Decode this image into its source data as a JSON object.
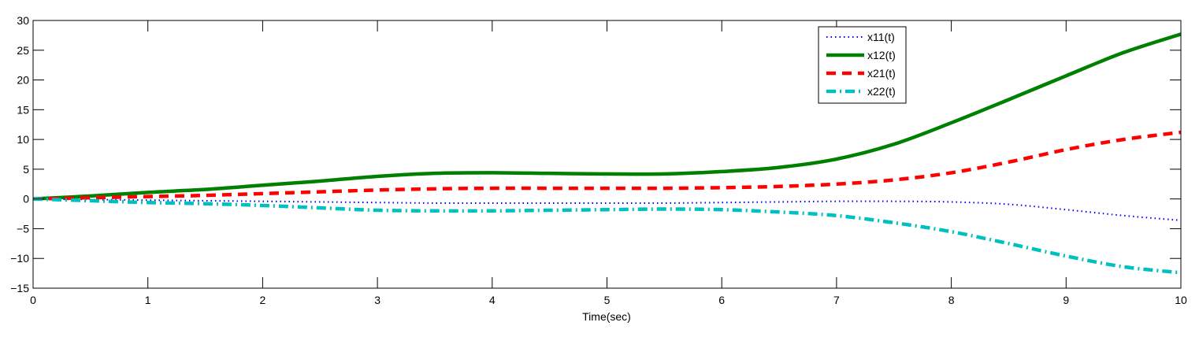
{
  "chart_data": {
    "type": "line",
    "title": "",
    "xlabel": "Time(sec)",
    "ylabel": "",
    "xlim": [
      0,
      10
    ],
    "ylim": [
      -15,
      30
    ],
    "xticks": [
      0,
      1,
      2,
      3,
      4,
      5,
      6,
      7,
      8,
      9,
      10
    ],
    "yticks": [
      30,
      25,
      20,
      15,
      10,
      5,
      0,
      -5,
      -10,
      -15
    ],
    "grid": false,
    "legend_position": "upper-right-inside",
    "x": [
      0,
      0.5,
      1,
      1.5,
      2,
      2.5,
      3,
      3.5,
      4,
      4.5,
      5,
      5.5,
      6,
      6.5,
      7,
      7.5,
      8,
      8.5,
      9,
      9.5,
      10
    ],
    "series": [
      {
        "name": "x11(t)",
        "color": "#0000ff",
        "style": "dotted",
        "values": [
          0,
          -0.1,
          -0.2,
          -0.3,
          -0.4,
          -0.5,
          -0.6,
          -0.7,
          -0.7,
          -0.7,
          -0.7,
          -0.7,
          -0.6,
          -0.5,
          -0.4,
          -0.4,
          -0.5,
          -0.9,
          -1.8,
          -2.8,
          -3.6
        ]
      },
      {
        "name": "x12(t)",
        "color": "#008000",
        "style": "solid",
        "values": [
          0,
          0.5,
          1.1,
          1.6,
          2.3,
          3.0,
          3.8,
          4.3,
          4.4,
          4.3,
          4.2,
          4.2,
          4.6,
          5.3,
          6.7,
          9.2,
          12.8,
          16.7,
          20.7,
          24.6,
          27.7
        ]
      },
      {
        "name": "x21(t)",
        "color": "#ff0000",
        "style": "dashed",
        "values": [
          0,
          0.2,
          0.4,
          0.6,
          0.9,
          1.2,
          1.5,
          1.7,
          1.8,
          1.8,
          1.8,
          1.8,
          1.9,
          2.1,
          2.5,
          3.2,
          4.4,
          6.2,
          8.3,
          10.0,
          11.2
        ]
      },
      {
        "name": "x22(t)",
        "color": "#00bfbf",
        "style": "dashdot",
        "values": [
          0,
          -0.3,
          -0.6,
          -0.8,
          -1.1,
          -1.5,
          -1.9,
          -2.0,
          -2.0,
          -1.9,
          -1.8,
          -1.7,
          -1.8,
          -2.2,
          -2.8,
          -4.0,
          -5.5,
          -7.5,
          -9.6,
          -11.4,
          -12.4
        ]
      }
    ]
  }
}
